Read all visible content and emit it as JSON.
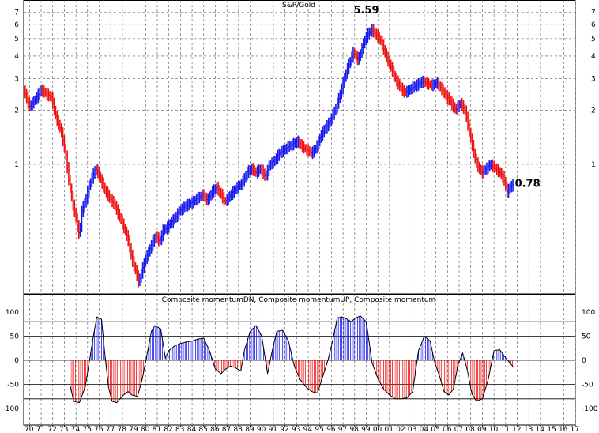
{
  "chart_data": [
    {
      "type": "ohlc-bar",
      "title": "S&P/Gold",
      "y_scale": "log",
      "ylim": [
        0.19,
        8.2
      ],
      "y_ticks": [
        1,
        2,
        3,
        4,
        5,
        6,
        7
      ],
      "x_range": [
        1970,
        2017.5
      ],
      "annotations": [
        {
          "text": "5.59",
          "x": 1999.5,
          "y": 5.59
        },
        {
          "text": "0.78",
          "x": 2012.3,
          "y": 0.78
        }
      ],
      "colors": {
        "up": "#1a1aee",
        "down": "#ee1111"
      },
      "series_path": [
        [
          1970.0,
          2.6
        ],
        [
          1970.5,
          2.1
        ],
        [
          1971.0,
          2.3
        ],
        [
          1971.5,
          2.6
        ],
        [
          1972.0,
          2.45
        ],
        [
          1972.4,
          2.35
        ],
        [
          1972.8,
          1.8
        ],
        [
          1973.2,
          1.55
        ],
        [
          1973.6,
          1.15
        ],
        [
          1973.9,
          0.8
        ],
        [
          1974.2,
          0.62
        ],
        [
          1974.5,
          0.5
        ],
        [
          1974.8,
          0.4
        ],
        [
          1975.0,
          0.55
        ],
        [
          1975.3,
          0.62
        ],
        [
          1975.6,
          0.75
        ],
        [
          1975.9,
          0.85
        ],
        [
          1976.2,
          0.95
        ],
        [
          1976.4,
          0.9
        ],
        [
          1976.7,
          0.8
        ],
        [
          1977.0,
          0.72
        ],
        [
          1977.4,
          0.65
        ],
        [
          1977.8,
          0.6
        ],
        [
          1978.2,
          0.52
        ],
        [
          1978.6,
          0.45
        ],
        [
          1979.0,
          0.38
        ],
        [
          1979.3,
          0.3
        ],
        [
          1979.6,
          0.26
        ],
        [
          1979.9,
          0.22
        ],
        [
          1980.2,
          0.26
        ],
        [
          1980.5,
          0.3
        ],
        [
          1980.8,
          0.33
        ],
        [
          1981.1,
          0.37
        ],
        [
          1981.4,
          0.4
        ],
        [
          1981.7,
          0.37
        ],
        [
          1982.0,
          0.43
        ],
        [
          1982.3,
          0.44
        ],
        [
          1982.6,
          0.47
        ],
        [
          1983.0,
          0.5
        ],
        [
          1983.4,
          0.55
        ],
        [
          1983.8,
          0.58
        ],
        [
          1984.2,
          0.6
        ],
        [
          1984.6,
          0.62
        ],
        [
          1985.0,
          0.65
        ],
        [
          1985.4,
          0.68
        ],
        [
          1985.8,
          0.63
        ],
        [
          1986.2,
          0.7
        ],
        [
          1986.6,
          0.75
        ],
        [
          1987.0,
          0.68
        ],
        [
          1987.3,
          0.62
        ],
        [
          1987.6,
          0.65
        ],
        [
          1988.0,
          0.7
        ],
        [
          1988.4,
          0.75
        ],
        [
          1988.8,
          0.78
        ],
        [
          1989.2,
          0.9
        ],
        [
          1989.6,
          0.95
        ],
        [
          1990.0,
          0.9
        ],
        [
          1990.4,
          0.95
        ],
        [
          1990.8,
          0.85
        ],
        [
          1991.2,
          1.0
        ],
        [
          1991.6,
          1.05
        ],
        [
          1992.0,
          1.15
        ],
        [
          1992.4,
          1.2
        ],
        [
          1992.8,
          1.25
        ],
        [
          1993.2,
          1.3
        ],
        [
          1993.6,
          1.35
        ],
        [
          1994.0,
          1.25
        ],
        [
          1994.4,
          1.2
        ],
        [
          1994.8,
          1.15
        ],
        [
          1995.2,
          1.25
        ],
        [
          1995.6,
          1.45
        ],
        [
          1996.0,
          1.6
        ],
        [
          1996.4,
          1.75
        ],
        [
          1996.8,
          2.0
        ],
        [
          1997.2,
          2.4
        ],
        [
          1997.6,
          3.0
        ],
        [
          1998.0,
          3.6
        ],
        [
          1998.4,
          4.2
        ],
        [
          1998.8,
          3.8
        ],
        [
          1999.2,
          4.6
        ],
        [
          1999.6,
          5.3
        ],
        [
          2000.0,
          5.59
        ],
        [
          2000.4,
          5.2
        ],
        [
          2000.8,
          4.8
        ],
        [
          2001.2,
          4.0
        ],
        [
          2001.6,
          3.5
        ],
        [
          2002.0,
          3.0
        ],
        [
          2002.4,
          2.7
        ],
        [
          2002.8,
          2.5
        ],
        [
          2003.2,
          2.6
        ],
        [
          2003.6,
          2.7
        ],
        [
          2004.0,
          2.8
        ],
        [
          2004.4,
          2.9
        ],
        [
          2004.8,
          2.8
        ],
        [
          2005.2,
          2.75
        ],
        [
          2005.6,
          2.85
        ],
        [
          2006.0,
          2.6
        ],
        [
          2006.4,
          2.4
        ],
        [
          2006.8,
          2.2
        ],
        [
          2007.2,
          2.0
        ],
        [
          2007.6,
          2.2
        ],
        [
          2008.0,
          2.0
        ],
        [
          2008.3,
          1.6
        ],
        [
          2008.6,
          1.3
        ],
        [
          2008.9,
          1.05
        ],
        [
          2009.2,
          0.95
        ],
        [
          2009.5,
          0.9
        ],
        [
          2009.8,
          0.95
        ],
        [
          2010.2,
          1.0
        ],
        [
          2010.6,
          0.95
        ],
        [
          2011.0,
          0.9
        ],
        [
          2011.3,
          0.85
        ],
        [
          2011.6,
          0.7
        ],
        [
          2011.9,
          0.75
        ],
        [
          2012.2,
          0.78
        ]
      ]
    },
    {
      "type": "area",
      "title": "Composite momentumDN, Composite momentumUP, Composite momentum",
      "ylim": [
        -100,
        100
      ],
      "y_ticks": [
        100,
        50,
        0,
        -50,
        -100
      ],
      "hlines": [
        -80,
        -50,
        0,
        50,
        80
      ],
      "x_range": [
        1970,
        2017.5
      ],
      "x_tick_labels": [
        "70",
        "71",
        "72",
        "73",
        "74",
        "75",
        "76",
        "77",
        "78",
        "79",
        "80",
        "81",
        "82",
        "83",
        "84",
        "85",
        "86",
        "87",
        "88",
        "89",
        "90",
        "91",
        "92",
        "93",
        "94",
        "95",
        "96",
        "97",
        "98",
        "99",
        "00",
        "01",
        "02",
        "03",
        "04",
        "05",
        "06",
        "07",
        "08",
        "09",
        "10",
        "11",
        "12",
        "13",
        "14",
        "15",
        "16",
        "17"
      ],
      "colors": {
        "up": "#1a1aee",
        "down": "#ee1111",
        "line": "#000000"
      },
      "series": [
        {
          "name": "Composite momentum",
          "x": [
            1970,
            1971,
            1972,
            1973,
            1973.7,
            1974.3,
            1974.8,
            1975.3,
            1975.6,
            1976,
            1976.3,
            1976.7,
            1977,
            1977.3,
            1977.6,
            1978,
            1978.3,
            1978.6,
            1979,
            1979.3,
            1979.8,
            1980.2,
            1980.6,
            1981,
            1981.3,
            1981.8,
            1982.2,
            1982.5,
            1983,
            1983.5,
            1984,
            1984.5,
            1985,
            1985.5,
            1986,
            1986.5,
            1987,
            1987.3,
            1987.8,
            1988.2,
            1988.7,
            1989,
            1989.5,
            1990,
            1990.5,
            1991,
            1991.4,
            1991.8,
            1992.3,
            1992.8,
            1993.3,
            1993.8,
            1994.3,
            1994.8,
            1995.3,
            1995.8,
            1996.2,
            1996.6,
            1997,
            1997.4,
            1997.8,
            1998.2,
            1998.6,
            1999,
            1999.5,
            2000,
            2000.5,
            2001,
            2001.5,
            2002,
            2002.5,
            2003,
            2003.5,
            2004,
            2004.5,
            2005,
            2005.4,
            2005.8,
            2006.2,
            2006.6,
            2007,
            2007.4,
            2007.8,
            2008.2,
            2008.6,
            2009,
            2009.5,
            2010,
            2010.5,
            2011,
            2011.5,
            2012.2
          ],
          "values": [
            0,
            0,
            0,
            0,
            -20,
            -85,
            -88,
            -55,
            -10,
            50,
            90,
            85,
            10,
            -55,
            -85,
            -88,
            -80,
            -72,
            -65,
            -72,
            -75,
            -40,
            10,
            60,
            72,
            65,
            5,
            20,
            30,
            35,
            38,
            40,
            44,
            46,
            20,
            -18,
            -28,
            -20,
            -12,
            -15,
            -22,
            20,
            60,
            72,
            50,
            -28,
            20,
            60,
            62,
            40,
            -12,
            -40,
            -55,
            -65,
            -68,
            -30,
            0,
            40,
            88,
            90,
            86,
            80,
            88,
            92,
            80,
            -5,
            -38,
            -60,
            -72,
            -80,
            -80,
            -78,
            -65,
            20,
            50,
            40,
            -5,
            -32,
            -65,
            -72,
            -60,
            -10,
            15,
            -20,
            -70,
            -85,
            -80,
            -40,
            20,
            22,
            5,
            -15
          ]
        }
      ]
    }
  ]
}
